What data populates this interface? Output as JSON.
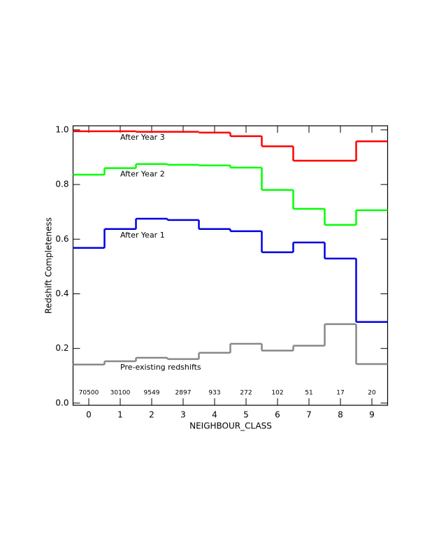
{
  "chart_data": {
    "type": "step",
    "xlabel": "NEIGHBOUR_CLASS",
    "ylabel": "Redshift Completeness",
    "x": [
      0,
      1,
      2,
      3,
      4,
      5,
      6,
      7,
      8,
      9
    ],
    "xlim": [
      -0.5,
      9.5
    ],
    "xticks": [
      0,
      1,
      2,
      3,
      4,
      5,
      6,
      7,
      8,
      9
    ],
    "ylim": [
      -0.008,
      1.015
    ],
    "yticks": [
      {
        "value": 0,
        "label": "0.0"
      },
      {
        "value": 0.2,
        "label": "0.2"
      },
      {
        "value": 0.4,
        "label": "0.4"
      },
      {
        "value": 0.6,
        "label": "0.6"
      },
      {
        "value": 0.8,
        "label": "0.8"
      },
      {
        "value": 1,
        "label": "1.0"
      }
    ],
    "counts": [
      70500,
      30100,
      9549,
      2897,
      933,
      272,
      102,
      51,
      17,
      20
    ],
    "series": [
      {
        "name": "After Year 3",
        "color": "#ff0000",
        "values": [
          0.995,
          0.995,
          0.993,
          0.993,
          0.99,
          0.977,
          0.94,
          0.887,
          0.887,
          0.958
        ]
      },
      {
        "name": "After Year 2",
        "color": "#00ff00",
        "values": [
          0.836,
          0.86,
          0.875,
          0.872,
          0.87,
          0.862,
          0.78,
          0.711,
          0.652,
          0.706
        ]
      },
      {
        "name": "After Year 1",
        "color": "#0000e0",
        "values": [
          0.568,
          0.637,
          0.675,
          0.67,
          0.637,
          0.629,
          0.552,
          0.588,
          0.529,
          0.297
        ]
      },
      {
        "name": "Pre-existing redshifts",
        "color": "#888888",
        "values": [
          0.141,
          0.153,
          0.166,
          0.161,
          0.184,
          0.217,
          0.192,
          0.21,
          0.289,
          0.143
        ]
      }
    ]
  }
}
